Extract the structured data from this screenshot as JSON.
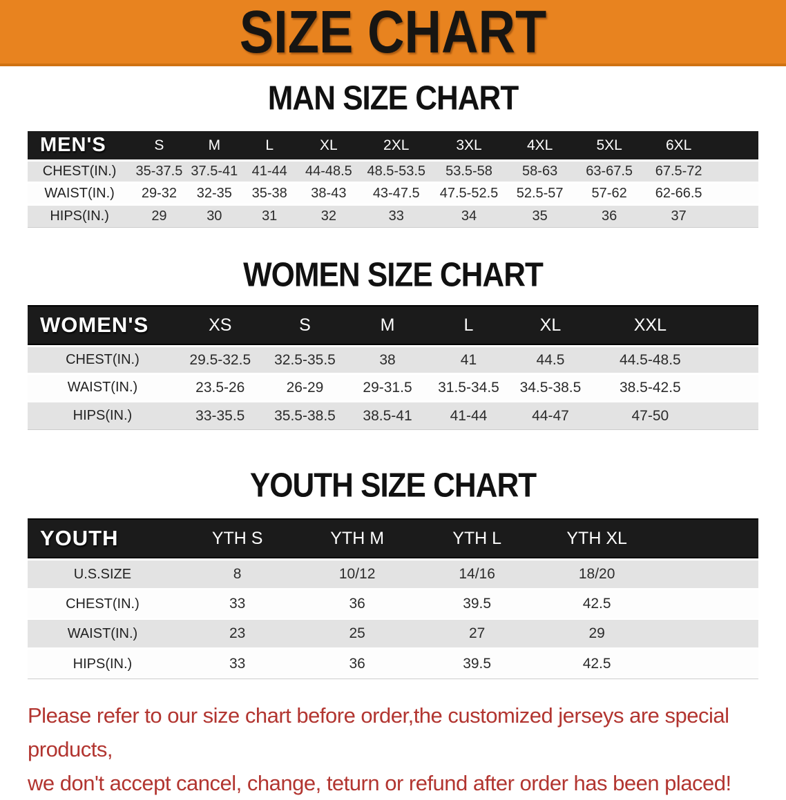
{
  "banner": {
    "title": "SIZE CHART",
    "bg_color": "#E8831F",
    "text_color": "#171512"
  },
  "colors": {
    "table_header_bg": "#1b1b1b",
    "row_stripe_gray": "#e3e3e3",
    "disclaimer_red": "#B23530"
  },
  "sections": [
    {
      "heading": "MAN SIZE CHART",
      "table": {
        "label": "MEN'S",
        "columns": [
          "S",
          "M",
          "L",
          "XL",
          "2XL",
          "3XL",
          "4XL",
          "5XL",
          "6XL"
        ],
        "rows": [
          {
            "label": "CHEST(IN.)",
            "values": [
              "35-37.5",
              "37.5-41",
              "41-44",
              "44-48.5",
              "48.5-53.5",
              "53.5-58",
              "58-63",
              "63-67.5",
              "67.5-72"
            ]
          },
          {
            "label": "WAIST(IN.)",
            "values": [
              "29-32",
              "32-35",
              "35-38",
              "38-43",
              "43-47.5",
              "47.5-52.5",
              "52.5-57",
              "57-62",
              "62-66.5"
            ]
          },
          {
            "label": "HIPS(IN.)",
            "values": [
              "29",
              "30",
              "31",
              "32",
              "33",
              "34",
              "35",
              "36",
              "37"
            ]
          }
        ]
      }
    },
    {
      "heading": "WOMEN SIZE CHART",
      "table": {
        "label": "WOMEN'S",
        "columns": [
          "XS",
          "S",
          "M",
          "L",
          "XL",
          "XXL"
        ],
        "rows": [
          {
            "label": "CHEST(IN.)",
            "values": [
              "29.5-32.5",
              "32.5-35.5",
              "38",
              "41",
              "44.5",
              "44.5-48.5"
            ]
          },
          {
            "label": "WAIST(IN.)",
            "values": [
              "23.5-26",
              "26-29",
              "29-31.5",
              "31.5-34.5",
              "34.5-38.5",
              "38.5-42.5"
            ]
          },
          {
            "label": "HIPS(IN.)",
            "values": [
              "33-35.5",
              "35.5-38.5",
              "38.5-41",
              "41-44",
              "44-47",
              "47-50"
            ]
          }
        ]
      }
    },
    {
      "heading": "YOUTH SIZE CHART",
      "table": {
        "label": "YOUTH",
        "columns": [
          "YTH S",
          "YTH M",
          "YTH L",
          "YTH XL"
        ],
        "rows": [
          {
            "label": "U.S.SIZE",
            "values": [
              "8",
              "10/12",
              "14/16",
              "18/20"
            ]
          },
          {
            "label": "CHEST(IN.)",
            "values": [
              "33",
              "36",
              "39.5",
              "42.5"
            ]
          },
          {
            "label": "WAIST(IN.)",
            "values": [
              "23",
              "25",
              "27",
              "29"
            ]
          },
          {
            "label": "HIPS(IN.)",
            "values": [
              "33",
              "36",
              "39.5",
              "42.5"
            ]
          }
        ]
      }
    }
  ],
  "disclaimer": {
    "line1": "Please refer to our size chart before order,the customized jerseys are special products,",
    "line2": "we don't accept cancel, change, teturn or refund after order has been placed!"
  }
}
